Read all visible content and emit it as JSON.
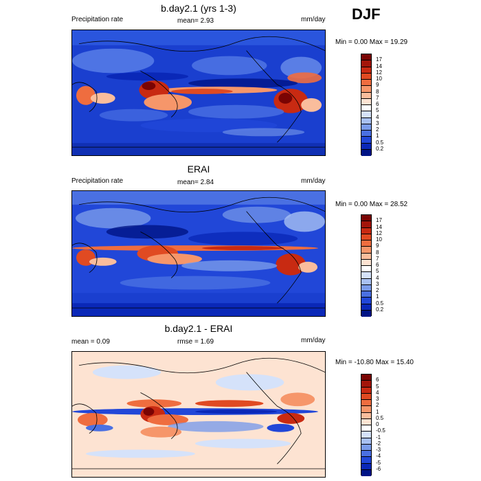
{
  "season": "DJF",
  "panels": [
    {
      "title": "b.day2.1 (yrs 1-3)",
      "left_label": "Precipitation rate",
      "center_label": "mean=   2.93",
      "units": "mm/day",
      "minmax": "Min =   0.00 Max =  19.29",
      "colorbar": {
        "labels": [
          "17",
          "14",
          "12",
          "10",
          "9",
          "8",
          "7",
          "6",
          "5",
          "4",
          "3",
          "2",
          "1",
          "0.5",
          "0.2"
        ],
        "colors": [
          "#7a0403",
          "#a3150a",
          "#c82a12",
          "#e04a22",
          "#ef6d3f",
          "#f6966a",
          "#fabd9c",
          "#fde3d2",
          "#ffffff",
          "#d5e2fa",
          "#a8c0f2",
          "#7a9bea",
          "#4a70e2",
          "#2147d8",
          "#0a28b8",
          "#001486"
        ]
      }
    },
    {
      "title": "ERAI",
      "left_label": "Precipitation rate",
      "center_label": "mean=   2.84",
      "units": "mm/day",
      "minmax": "Min =   0.00 Max =  28.52",
      "colorbar": {
        "labels": [
          "17",
          "14",
          "12",
          "10",
          "9",
          "8",
          "7",
          "6",
          "5",
          "4",
          "3",
          "2",
          "1",
          "0.5",
          "0.2"
        ],
        "colors": [
          "#7a0403",
          "#a3150a",
          "#c82a12",
          "#e04a22",
          "#ef6d3f",
          "#f6966a",
          "#fabd9c",
          "#fde3d2",
          "#ffffff",
          "#d5e2fa",
          "#a8c0f2",
          "#7a9bea",
          "#4a70e2",
          "#2147d8",
          "#0a28b8",
          "#001486"
        ]
      }
    },
    {
      "title": "b.day2.1 - ERAI",
      "left_label": "mean =   0.09",
      "center_label": "rmse =   1.69",
      "units": "mm/day",
      "minmax": "Min = -10.80 Max =  15.40",
      "colorbar": {
        "labels": [
          "6",
          "5",
          "4",
          "3",
          "2",
          "1",
          "0.5",
          "0",
          "-0.5",
          "-1",
          "-2",
          "-3",
          "-4",
          "-5",
          "-6"
        ],
        "colors": [
          "#7a0403",
          "#a3150a",
          "#c82a12",
          "#e04a22",
          "#ef6d3f",
          "#f6966a",
          "#fabd9c",
          "#fde3d2",
          "#ffffff",
          "#d5e2fa",
          "#a8c0f2",
          "#7a9bea",
          "#4a70e2",
          "#2147d8",
          "#0a28b8",
          "#001486"
        ]
      }
    }
  ],
  "chart_data": [
    {
      "type": "heatmap",
      "title": "b.day2.1 (yrs 1-3)",
      "variable": "Precipitation rate",
      "units": "mm/day",
      "mean": 2.93,
      "min": 0.0,
      "max": 19.29,
      "season": "DJF",
      "levels": [
        0.2,
        0.5,
        1,
        2,
        3,
        4,
        5,
        6,
        7,
        8,
        9,
        10,
        12,
        14,
        17
      ]
    },
    {
      "type": "heatmap",
      "title": "ERAI",
      "variable": "Precipitation rate",
      "units": "mm/day",
      "mean": 2.84,
      "min": 0.0,
      "max": 28.52,
      "season": "DJF",
      "levels": [
        0.2,
        0.5,
        1,
        2,
        3,
        4,
        5,
        6,
        7,
        8,
        9,
        10,
        12,
        14,
        17
      ]
    },
    {
      "type": "heatmap",
      "title": "b.day2.1 - ERAI",
      "units": "mm/day",
      "mean": 0.09,
      "rmse": 1.69,
      "min": -10.8,
      "max": 15.4,
      "season": "DJF",
      "levels": [
        -6,
        -5,
        -4,
        -3,
        -2,
        -1,
        -0.5,
        0,
        0.5,
        1,
        2,
        3,
        4,
        5,
        6
      ]
    }
  ]
}
